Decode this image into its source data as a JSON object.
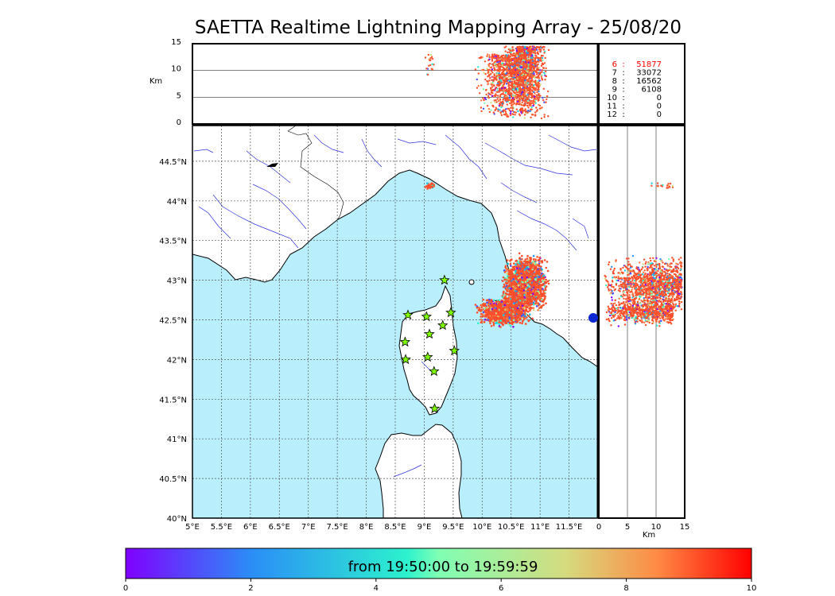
{
  "title": "SAETTA Realtime Lightning Mapping Array - 25/08/20",
  "chart_data": {
    "type": "scatter",
    "map": {
      "lon_range": [
        5,
        12
      ],
      "lat_range": [
        40,
        44.95
      ],
      "x_ticks": [
        "5°E",
        "5.5°E",
        "6°E",
        "6.5°E",
        "7°E",
        "7.5°E",
        "8°E",
        "8.5°E",
        "9°E",
        "9.5°E",
        "10°E",
        "10.5°E",
        "11°E",
        "11.5°E"
      ],
      "y_ticks": [
        "40°N",
        "40.5°N",
        "41°N",
        "41.5°N",
        "42°N",
        "42.5°N",
        "43°N",
        "43.5°N",
        "44°N",
        "44.5°N"
      ],
      "grid": true,
      "sea_color": "#b9eefc",
      "land_color": "#ffffff"
    },
    "altitude_axis": {
      "label": "Km",
      "range": [
        0,
        15
      ],
      "ticks": [
        "0",
        "5",
        "10",
        "15"
      ]
    },
    "stations": [
      {
        "lon": 9.35,
        "lat": 43.0
      },
      {
        "lon": 9.46,
        "lat": 42.59
      },
      {
        "lon": 9.04,
        "lat": 42.54
      },
      {
        "lon": 8.72,
        "lat": 42.56
      },
      {
        "lon": 9.32,
        "lat": 42.43
      },
      {
        "lon": 9.09,
        "lat": 42.32
      },
      {
        "lon": 8.67,
        "lat": 42.22
      },
      {
        "lon": 9.52,
        "lat": 42.11
      },
      {
        "lon": 8.68,
        "lat": 42.0
      },
      {
        "lon": 9.06,
        "lat": 42.03
      },
      {
        "lon": 9.17,
        "lat": 41.85
      },
      {
        "lon": 9.18,
        "lat": 41.38
      }
    ],
    "lightning_clusters": [
      {
        "lon": [
          10.3,
          11.2
        ],
        "lat": [
          42.55,
          43.35
        ],
        "alt": [
          1,
          14.5
        ],
        "count": 2600
      },
      {
        "lon": [
          9.85,
          10.9
        ],
        "lat": [
          42.4,
          42.8
        ],
        "alt": [
          1,
          13
        ],
        "count": 1500
      },
      {
        "lon": [
          9.0,
          9.2
        ],
        "lat": [
          44.13,
          44.25
        ],
        "alt": [
          9,
          13
        ],
        "count": 40
      }
    ],
    "station_counts": [
      {
        "stations": "6",
        "count": "51877",
        "color": "#ff0000"
      },
      {
        "stations": "7",
        "count": "33072",
        "color": "#000000"
      },
      {
        "stations": "8",
        "count": "16562",
        "color": "#000000"
      },
      {
        "stations": "9",
        "count": "6108",
        "color": "#000000"
      },
      {
        "stations": "10",
        "count": "0",
        "color": "#000000"
      },
      {
        "stations": "11",
        "count": "0",
        "color": "#000000"
      },
      {
        "stations": "12",
        "count": "0",
        "color": "#000000"
      }
    ],
    "colorbar": {
      "label": "from 19:50:00 to 19:59:59",
      "range": [
        0,
        10
      ],
      "ticks": [
        "0",
        "2",
        "4",
        "6",
        "8",
        "10"
      ],
      "colormap": "rainbow"
    }
  }
}
